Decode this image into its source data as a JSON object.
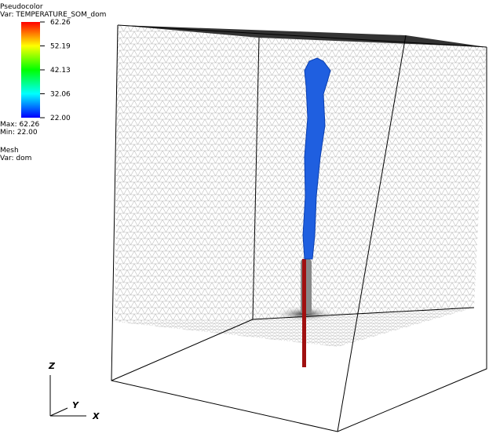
{
  "legend": {
    "title": "Pseudocolor",
    "variable": "Var: TEMPERATURE_SOM_dom",
    "ticks": [
      "62.26",
      "52.19",
      "42.13",
      "32.06",
      "22.00"
    ],
    "max": "Max: 62.26",
    "min": "Min: 22.00"
  },
  "mesh": {
    "title": "Mesh",
    "variable": "Var: dom"
  },
  "axes": {
    "z": "Z",
    "y": "Y",
    "x": "X"
  }
}
